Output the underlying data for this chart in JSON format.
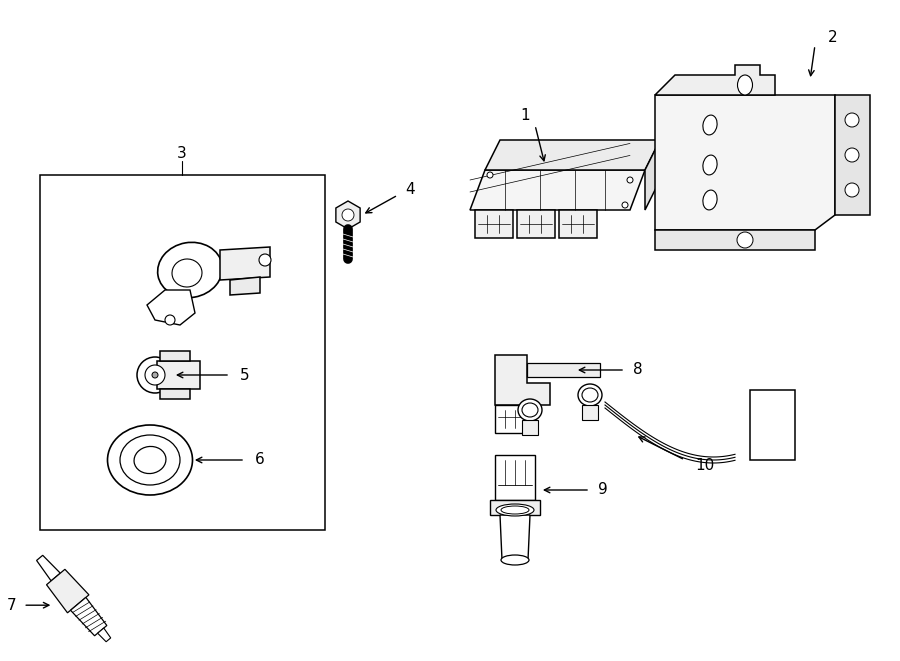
{
  "bg_color": "#ffffff",
  "line_color": "#000000",
  "fig_width": 9.0,
  "fig_height": 6.61,
  "dpi": 100,
  "lw": 1.1,
  "font_size": 11,
  "font_size_small": 9
}
